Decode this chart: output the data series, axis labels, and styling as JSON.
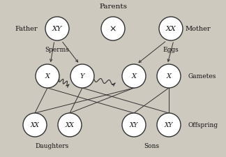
{
  "bg_color": "#cdc9be",
  "circle_color": "white",
  "circle_edge": "#333333",
  "line_color": "#333333",
  "text_color": "#111111",
  "parents_label": "Parents",
  "father_label": "Father",
  "mother_label": "Mother",
  "sperms_label": "Sperms",
  "eggs_label": "Eggs",
  "gametes_label": "Gametes",
  "offspring_label": "Offspring",
  "daughters_label": "Daughters",
  "sons_label": "Sons",
  "father_circle": "XY",
  "mother_circle": "XX",
  "cross_symbol": "×",
  "fig_width": 3.24,
  "fig_height": 2.26,
  "dpi": 100
}
